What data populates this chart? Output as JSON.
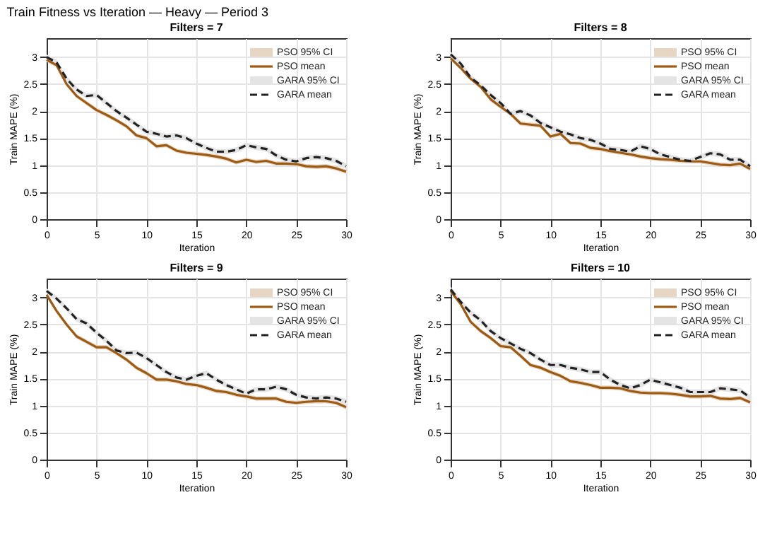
{
  "chart_data": [
    {
      "type": "line",
      "title": "Filters = 7",
      "xlabel": "Iteration",
      "ylabel": "Train MAPE (%)",
      "annotations": [
        "Train Fitness vs Iteration — Heavy — Period 3",
        "PSO 95% CI",
        "GARA 95% CI"
      ],
      "x": [
        0,
        1,
        2,
        3,
        4,
        5,
        6,
        7,
        8,
        9,
        10,
        11,
        12,
        13,
        14,
        15,
        16,
        17,
        18,
        19,
        20,
        21,
        22,
        23,
        24,
        25,
        26,
        27,
        28,
        29,
        30
      ],
      "xlim": [
        0,
        30
      ],
      "xticks": [
        0,
        5,
        10,
        15,
        20,
        25,
        30
      ],
      "ylim": [
        0,
        3.35
      ],
      "yticks": [
        0,
        0.5,
        1,
        1.5,
        2,
        2.5,
        3
      ],
      "grid": true,
      "legend": "top right",
      "series": [
        {
          "name": "PSO mean",
          "color": "#9c5a12",
          "line_style": "solid",
          "values": [
            2.95,
            2.85,
            2.5,
            2.28,
            2.15,
            2.02,
            1.93,
            1.83,
            1.72,
            1.55,
            1.5,
            1.35,
            1.37,
            1.27,
            1.23,
            1.21,
            1.19,
            1.16,
            1.12,
            1.05,
            1.1,
            1.06,
            1.08,
            1.03,
            1.03,
            1.02,
            0.98,
            0.97,
            0.98,
            0.94,
            0.88
          ],
          "lower": [
            2.91,
            2.81,
            2.46,
            2.24,
            2.11,
            1.98,
            1.89,
            1.79,
            1.68,
            1.51,
            1.46,
            1.31,
            1.33,
            1.23,
            1.19,
            1.17,
            1.15,
            1.12,
            1.08,
            1.01,
            1.06,
            1.02,
            1.04,
            0.99,
            0.99,
            0.98,
            0.94,
            0.93,
            0.94,
            0.9,
            0.84
          ],
          "upper": [
            2.99,
            2.89,
            2.54,
            2.32,
            2.19,
            2.06,
            1.97,
            1.87,
            1.76,
            1.59,
            1.54,
            1.39,
            1.41,
            1.31,
            1.27,
            1.25,
            1.23,
            1.2,
            1.16,
            1.09,
            1.14,
            1.1,
            1.12,
            1.07,
            1.07,
            1.06,
            1.02,
            1.01,
            1.02,
            0.98,
            0.92
          ]
        },
        {
          "name": "GARA mean",
          "color": "#222222",
          "line_style": "dashed",
          "values": [
            3.0,
            2.9,
            2.6,
            2.4,
            2.28,
            2.3,
            2.15,
            2.0,
            1.88,
            1.75,
            1.62,
            1.58,
            1.53,
            1.55,
            1.5,
            1.4,
            1.32,
            1.25,
            1.25,
            1.28,
            1.37,
            1.33,
            1.3,
            1.18,
            1.1,
            1.07,
            1.13,
            1.15,
            1.13,
            1.08,
            0.98
          ],
          "lower": [
            2.95,
            2.85,
            2.55,
            2.35,
            2.23,
            2.25,
            2.1,
            1.95,
            1.83,
            1.7,
            1.57,
            1.53,
            1.48,
            1.5,
            1.45,
            1.35,
            1.27,
            1.2,
            1.2,
            1.23,
            1.32,
            1.28,
            1.25,
            1.13,
            1.05,
            1.02,
            1.08,
            1.1,
            1.08,
            1.03,
            0.93
          ],
          "upper": [
            3.05,
            2.95,
            2.65,
            2.45,
            2.33,
            2.35,
            2.2,
            2.05,
            1.93,
            1.8,
            1.67,
            1.63,
            1.58,
            1.6,
            1.55,
            1.45,
            1.37,
            1.3,
            1.3,
            1.33,
            1.42,
            1.38,
            1.35,
            1.23,
            1.15,
            1.12,
            1.18,
            1.2,
            1.18,
            1.13,
            1.03
          ]
        }
      ]
    },
    {
      "type": "line",
      "title": "Filters = 8",
      "xlabel": "Iteration",
      "ylabel": "Train MAPE (%)",
      "annotations": [
        "PSO 95% CI",
        "GARA 95% CI"
      ],
      "x": [
        0,
        1,
        2,
        3,
        4,
        5,
        6,
        7,
        8,
        9,
        10,
        11,
        12,
        13,
        14,
        15,
        16,
        17,
        18,
        19,
        20,
        21,
        22,
        23,
        24,
        25,
        26,
        27,
        28,
        29,
        30
      ],
      "xlim": [
        0,
        30
      ],
      "xticks": [
        0,
        5,
        10,
        15,
        20,
        25,
        30
      ],
      "ylim": [
        0,
        3.35
      ],
      "yticks": [
        0,
        0.5,
        1,
        1.5,
        2,
        2.5,
        3
      ],
      "grid": true,
      "legend": "top right",
      "series": [
        {
          "name": "PSO mean",
          "color": "#9c5a12",
          "line_style": "solid",
          "values": [
            2.98,
            2.8,
            2.6,
            2.45,
            2.22,
            2.08,
            1.95,
            1.77,
            1.75,
            1.73,
            1.53,
            1.58,
            1.41,
            1.4,
            1.32,
            1.3,
            1.26,
            1.23,
            1.2,
            1.16,
            1.13,
            1.11,
            1.1,
            1.08,
            1.07,
            1.07,
            1.04,
            1.01,
            1.0,
            1.03,
            0.93
          ],
          "lower": [
            2.94,
            2.76,
            2.56,
            2.41,
            2.18,
            2.04,
            1.91,
            1.73,
            1.71,
            1.69,
            1.49,
            1.54,
            1.37,
            1.36,
            1.28,
            1.26,
            1.22,
            1.19,
            1.16,
            1.12,
            1.09,
            1.07,
            1.06,
            1.04,
            1.03,
            1.03,
            1.0,
            0.97,
            0.96,
            0.99,
            0.89
          ],
          "upper": [
            3.02,
            2.84,
            2.64,
            2.49,
            2.26,
            2.12,
            1.99,
            1.81,
            1.79,
            1.77,
            1.57,
            1.62,
            1.45,
            1.44,
            1.36,
            1.34,
            1.3,
            1.27,
            1.24,
            1.2,
            1.17,
            1.15,
            1.14,
            1.12,
            1.11,
            1.11,
            1.08,
            1.05,
            1.04,
            1.07,
            0.97
          ]
        },
        {
          "name": "GARA mean",
          "color": "#222222",
          "line_style": "dashed",
          "values": [
            3.05,
            2.88,
            2.62,
            2.48,
            2.3,
            2.15,
            1.95,
            2.0,
            1.92,
            1.78,
            1.7,
            1.62,
            1.57,
            1.5,
            1.47,
            1.4,
            1.3,
            1.28,
            1.25,
            1.35,
            1.3,
            1.2,
            1.15,
            1.1,
            1.08,
            1.15,
            1.22,
            1.2,
            1.1,
            1.1,
            0.98
          ],
          "lower": [
            3.0,
            2.83,
            2.57,
            2.43,
            2.25,
            2.1,
            1.9,
            1.95,
            1.87,
            1.73,
            1.65,
            1.57,
            1.52,
            1.45,
            1.42,
            1.35,
            1.25,
            1.23,
            1.2,
            1.3,
            1.25,
            1.15,
            1.1,
            1.05,
            1.03,
            1.1,
            1.17,
            1.15,
            1.05,
            1.05,
            0.93
          ],
          "upper": [
            3.1,
            2.93,
            2.67,
            2.53,
            2.35,
            2.2,
            2.0,
            2.05,
            1.97,
            1.83,
            1.75,
            1.67,
            1.62,
            1.55,
            1.52,
            1.45,
            1.35,
            1.33,
            1.3,
            1.4,
            1.35,
            1.25,
            1.2,
            1.15,
            1.13,
            1.2,
            1.27,
            1.25,
            1.15,
            1.15,
            1.03
          ]
        }
      ]
    },
    {
      "type": "line",
      "title": "Filters = 9",
      "xlabel": "Iteration",
      "ylabel": "Train MAPE (%)",
      "annotations": [
        "PSO 95% CI",
        "GARA 95% CI"
      ],
      "x": [
        0,
        1,
        2,
        3,
        4,
        5,
        6,
        7,
        8,
        9,
        10,
        11,
        12,
        13,
        14,
        15,
        16,
        17,
        18,
        19,
        20,
        21,
        22,
        23,
        24,
        25,
        26,
        27,
        28,
        29,
        30
      ],
      "xlim": [
        0,
        30
      ],
      "xticks": [
        0,
        5,
        10,
        15,
        20,
        25,
        30
      ],
      "ylim": [
        0,
        3.35
      ],
      "yticks": [
        0,
        0.5,
        1,
        1.5,
        2,
        2.5,
        3
      ],
      "grid": true,
      "legend": "top right",
      "series": [
        {
          "name": "PSO mean",
          "color": "#9c5a12",
          "line_style": "solid",
          "values": [
            3.05,
            2.75,
            2.5,
            2.28,
            2.18,
            2.08,
            2.08,
            1.97,
            1.85,
            1.7,
            1.6,
            1.48,
            1.48,
            1.45,
            1.4,
            1.38,
            1.33,
            1.27,
            1.25,
            1.2,
            1.17,
            1.13,
            1.13,
            1.13,
            1.07,
            1.05,
            1.07,
            1.08,
            1.08,
            1.05,
            0.97
          ],
          "lower": [
            3.01,
            2.71,
            2.46,
            2.24,
            2.14,
            2.04,
            2.04,
            1.93,
            1.81,
            1.66,
            1.56,
            1.44,
            1.44,
            1.41,
            1.36,
            1.34,
            1.29,
            1.23,
            1.21,
            1.16,
            1.13,
            1.09,
            1.09,
            1.09,
            1.03,
            1.01,
            1.03,
            1.04,
            1.04,
            1.01,
            0.93
          ],
          "upper": [
            3.09,
            2.79,
            2.54,
            2.32,
            2.22,
            2.12,
            2.12,
            2.01,
            1.89,
            1.74,
            1.64,
            1.52,
            1.52,
            1.49,
            1.44,
            1.42,
            1.37,
            1.31,
            1.29,
            1.24,
            1.21,
            1.17,
            1.17,
            1.17,
            1.11,
            1.09,
            1.11,
            1.12,
            1.12,
            1.09,
            1.01
          ]
        },
        {
          "name": "GARA mean",
          "color": "#222222",
          "line_style": "dashed",
          "values": [
            3.12,
            2.98,
            2.8,
            2.6,
            2.52,
            2.35,
            2.2,
            2.02,
            1.97,
            1.98,
            1.88,
            1.75,
            1.62,
            1.52,
            1.48,
            1.55,
            1.6,
            1.48,
            1.38,
            1.3,
            1.22,
            1.3,
            1.3,
            1.35,
            1.3,
            1.2,
            1.15,
            1.13,
            1.15,
            1.13,
            1.07
          ],
          "lower": [
            3.07,
            2.93,
            2.75,
            2.55,
            2.47,
            2.3,
            2.15,
            1.97,
            1.92,
            1.93,
            1.83,
            1.7,
            1.57,
            1.47,
            1.43,
            1.5,
            1.55,
            1.43,
            1.33,
            1.25,
            1.17,
            1.25,
            1.25,
            1.3,
            1.25,
            1.15,
            1.1,
            1.08,
            1.1,
            1.08,
            1.02
          ],
          "upper": [
            3.17,
            3.03,
            2.85,
            2.65,
            2.57,
            2.4,
            2.25,
            2.07,
            2.02,
            2.03,
            1.93,
            1.8,
            1.67,
            1.57,
            1.53,
            1.6,
            1.65,
            1.53,
            1.43,
            1.35,
            1.27,
            1.35,
            1.35,
            1.4,
            1.35,
            1.25,
            1.2,
            1.18,
            1.2,
            1.18,
            1.12
          ]
        }
      ]
    },
    {
      "type": "line",
      "title": "Filters = 10",
      "xlabel": "Iteration",
      "ylabel": "Train MAPE (%)",
      "annotations": [
        "PSO 95% CI",
        "GARA 95% CI"
      ],
      "x": [
        0,
        1,
        2,
        3,
        4,
        5,
        6,
        7,
        8,
        9,
        10,
        11,
        12,
        13,
        14,
        15,
        16,
        17,
        18,
        19,
        20,
        21,
        22,
        23,
        24,
        25,
        26,
        27,
        28,
        29,
        30
      ],
      "xlim": [
        0,
        30
      ],
      "xticks": [
        0,
        5,
        10,
        15,
        20,
        25,
        30
      ],
      "ylim": [
        0,
        3.35
      ],
      "yticks": [
        0,
        0.5,
        1,
        1.5,
        2,
        2.5,
        3
      ],
      "grid": true,
      "legend": "top right",
      "series": [
        {
          "name": "PSO mean",
          "color": "#9c5a12",
          "line_style": "solid",
          "values": [
            3.12,
            2.88,
            2.55,
            2.38,
            2.25,
            2.1,
            2.08,
            1.92,
            1.75,
            1.7,
            1.62,
            1.55,
            1.45,
            1.42,
            1.38,
            1.33,
            1.33,
            1.32,
            1.27,
            1.24,
            1.23,
            1.23,
            1.22,
            1.2,
            1.17,
            1.17,
            1.18,
            1.13,
            1.12,
            1.14,
            1.06
          ],
          "lower": [
            3.08,
            2.84,
            2.51,
            2.34,
            2.21,
            2.06,
            2.04,
            1.88,
            1.71,
            1.66,
            1.58,
            1.51,
            1.41,
            1.38,
            1.34,
            1.29,
            1.29,
            1.28,
            1.23,
            1.2,
            1.19,
            1.19,
            1.18,
            1.16,
            1.13,
            1.13,
            1.14,
            1.09,
            1.08,
            1.1,
            1.02
          ],
          "upper": [
            3.16,
            2.92,
            2.59,
            2.42,
            2.29,
            2.14,
            2.12,
            1.96,
            1.79,
            1.74,
            1.66,
            1.59,
            1.49,
            1.46,
            1.42,
            1.37,
            1.37,
            1.36,
            1.31,
            1.28,
            1.27,
            1.27,
            1.26,
            1.24,
            1.21,
            1.21,
            1.22,
            1.17,
            1.16,
            1.18,
            1.1
          ]
        },
        {
          "name": "GARA mean",
          "color": "#222222",
          "line_style": "dashed",
          "values": [
            3.15,
            2.92,
            2.72,
            2.58,
            2.38,
            2.25,
            2.15,
            2.05,
            1.97,
            1.85,
            1.75,
            1.75,
            1.7,
            1.67,
            1.62,
            1.62,
            1.48,
            1.38,
            1.32,
            1.38,
            1.48,
            1.43,
            1.38,
            1.33,
            1.25,
            1.25,
            1.25,
            1.32,
            1.3,
            1.28,
            1.15
          ],
          "lower": [
            3.1,
            2.87,
            2.67,
            2.53,
            2.33,
            2.2,
            2.1,
            2.0,
            1.92,
            1.8,
            1.7,
            1.7,
            1.65,
            1.62,
            1.57,
            1.57,
            1.43,
            1.33,
            1.27,
            1.33,
            1.43,
            1.38,
            1.33,
            1.28,
            1.2,
            1.2,
            1.2,
            1.27,
            1.25,
            1.23,
            1.1
          ],
          "upper": [
            3.2,
            2.97,
            2.77,
            2.63,
            2.43,
            2.3,
            2.2,
            2.1,
            2.02,
            1.9,
            1.8,
            1.8,
            1.75,
            1.72,
            1.67,
            1.67,
            1.53,
            1.43,
            1.37,
            1.43,
            1.53,
            1.48,
            1.43,
            1.38,
            1.3,
            1.3,
            1.3,
            1.37,
            1.35,
            1.33,
            1.2
          ]
        }
      ]
    }
  ]
}
